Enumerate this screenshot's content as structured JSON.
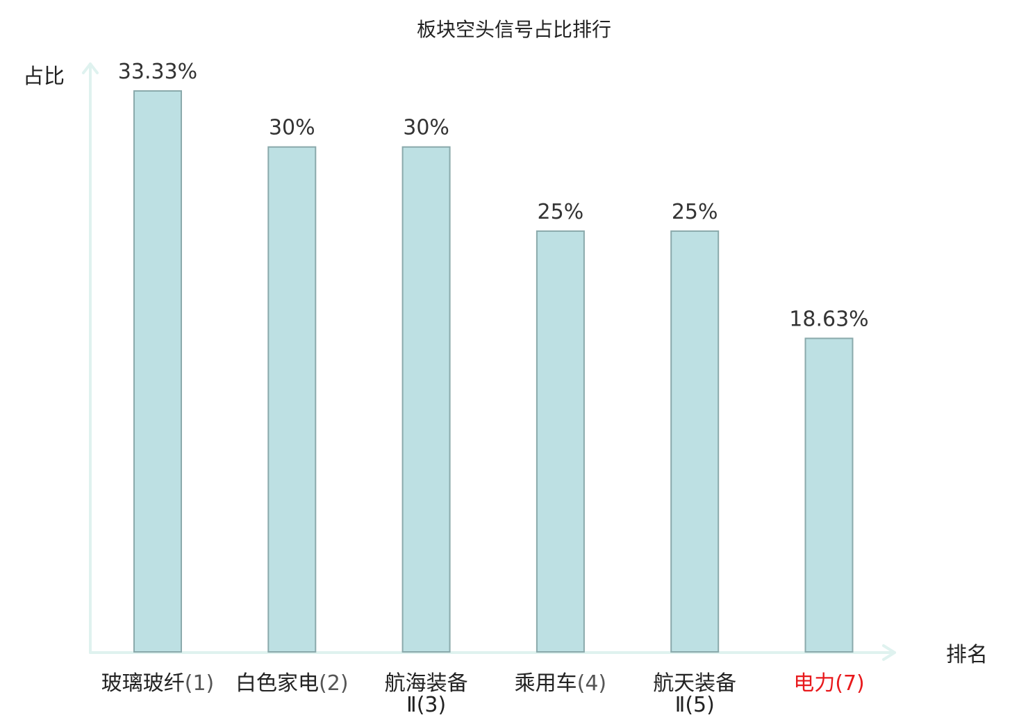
{
  "chart_data": {
    "type": "bar",
    "title": "板块空头信号占比排行",
    "ylabel": "占比",
    "xlabel": "排名",
    "categories": [
      {
        "name": "玻璃玻纤",
        "name2": "",
        "rank": "(1)",
        "highlight": false
      },
      {
        "name": "白色家电",
        "name2": "",
        "rank": "(2)",
        "highlight": false
      },
      {
        "name": "航海装备",
        "name2": "Ⅱ",
        "rank": "(3)",
        "highlight": false
      },
      {
        "name": "乘用车",
        "name2": "",
        "rank": "(4)",
        "highlight": false
      },
      {
        "name": "航天装备",
        "name2": "Ⅱ",
        "rank": "(5)",
        "highlight": false
      },
      {
        "name": "电力",
        "name2": "",
        "rank": "(7)",
        "highlight": true
      }
    ],
    "values": [
      33.33,
      30,
      30,
      25,
      25,
      18.63
    ],
    "value_labels": [
      "33.33%",
      "30%",
      "30%",
      "25%",
      "25%",
      "18.63%"
    ],
    "ylim": [
      0,
      33.33
    ],
    "grid": false,
    "colors": {
      "bar_fill": "#bde0e3",
      "bar_stroke": "#8aa9ab",
      "axis": "#dff2ef",
      "highlight_label": "#e8191c",
      "label": "#222222"
    }
  }
}
